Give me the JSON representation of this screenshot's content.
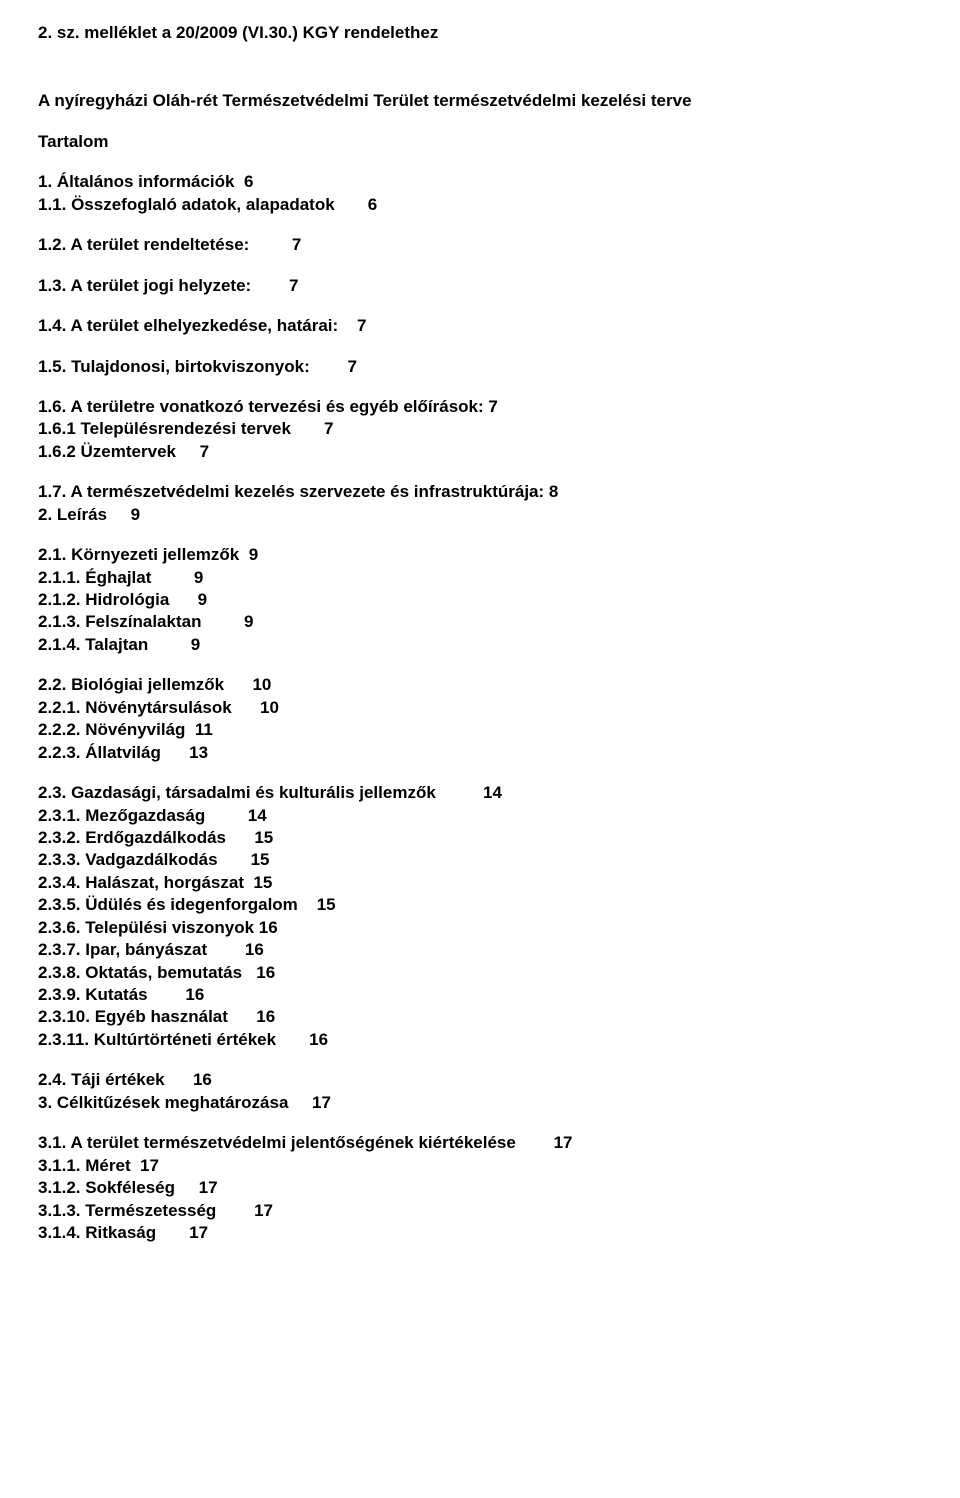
{
  "title": "2. sz. melléklet a 20/2009 (VI.30.) KGY rendelethez",
  "subtitle": "A nyíregyházi Oláh-rét Természetvédelmi Terület természetvédelmi kezelési terve",
  "tocTitle": "Tartalom",
  "items": {
    "s1": "1. Általános információk  6",
    "s1_1": "1.1. Összefoglaló adatok, alapadatok       6",
    "s1_2": "1.2. A terület rendeltetése:         7",
    "s1_3": "1.3. A terület jogi helyzete:        7",
    "s1_4": "1.4. A terület elhelyezkedése, határai:    7",
    "s1_5": "1.5. Tulajdonosi, birtokviszonyok:        7",
    "s1_6": "1.6. A területre vonatkozó tervezési és egyéb előírások: 7",
    "s1_6_1": "1.6.1 Településrendezési tervek       7",
    "s1_6_2": "1.6.2 Üzemtervek     7",
    "s1_7": "1.7. A természetvédelmi kezelés szervezete és infrastruktúrája: 8",
    "s2": "2. Leírás     9",
    "s2_1": "2.1. Környezeti jellemzők  9",
    "s2_1_1": "2.1.1. Éghajlat         9",
    "s2_1_2": "2.1.2. Hidrológia      9",
    "s2_1_3": "2.1.3. Felszínalaktan         9",
    "s2_1_4": "2.1.4. Talajtan         9",
    "s2_2": "2.2. Biológiai jellemzők      10",
    "s2_2_1": "2.2.1. Növénytársulások      10",
    "s2_2_2": "2.2.2. Növényvilág  11",
    "s2_2_3": "2.2.3. Állatvilág      13",
    "s2_3": "2.3. Gazdasági, társadalmi és kulturális jellemzők          14",
    "s2_3_1": "2.3.1. Mezőgazdaság         14",
    "s2_3_2": "2.3.2. Erdőgazdálkodás      15",
    "s2_3_3": "2.3.3. Vadgazdálkodás       15",
    "s2_3_4": "2.3.4. Halászat, horgászat  15",
    "s2_3_5": "2.3.5. Üdülés és idegenforgalom    15",
    "s2_3_6": "2.3.6. Települési viszonyok 16",
    "s2_3_7": "2.3.7. Ipar, bányászat        16",
    "s2_3_8": "2.3.8. Oktatás, bemutatás   16",
    "s2_3_9": "2.3.9. Kutatás        16",
    "s2_3_10": "2.3.10. Egyéb használat      16",
    "s2_3_11": "2.3.11. Kultúrtörténeti értékek       16",
    "s2_4": "2.4. Táji értékek      16",
    "s3": "3. Célkitűzések meghatározása     17",
    "s3_1": "3.1. A terület természetvédelmi jelentőségének kiértékelése        17",
    "s3_1_1": "3.1.1. Méret  17",
    "s3_1_2": "3.1.2. Sokféleség     17",
    "s3_1_3": "3.1.3. Természetesség        17",
    "s3_1_4": "3.1.4. Ritkaság       17"
  }
}
